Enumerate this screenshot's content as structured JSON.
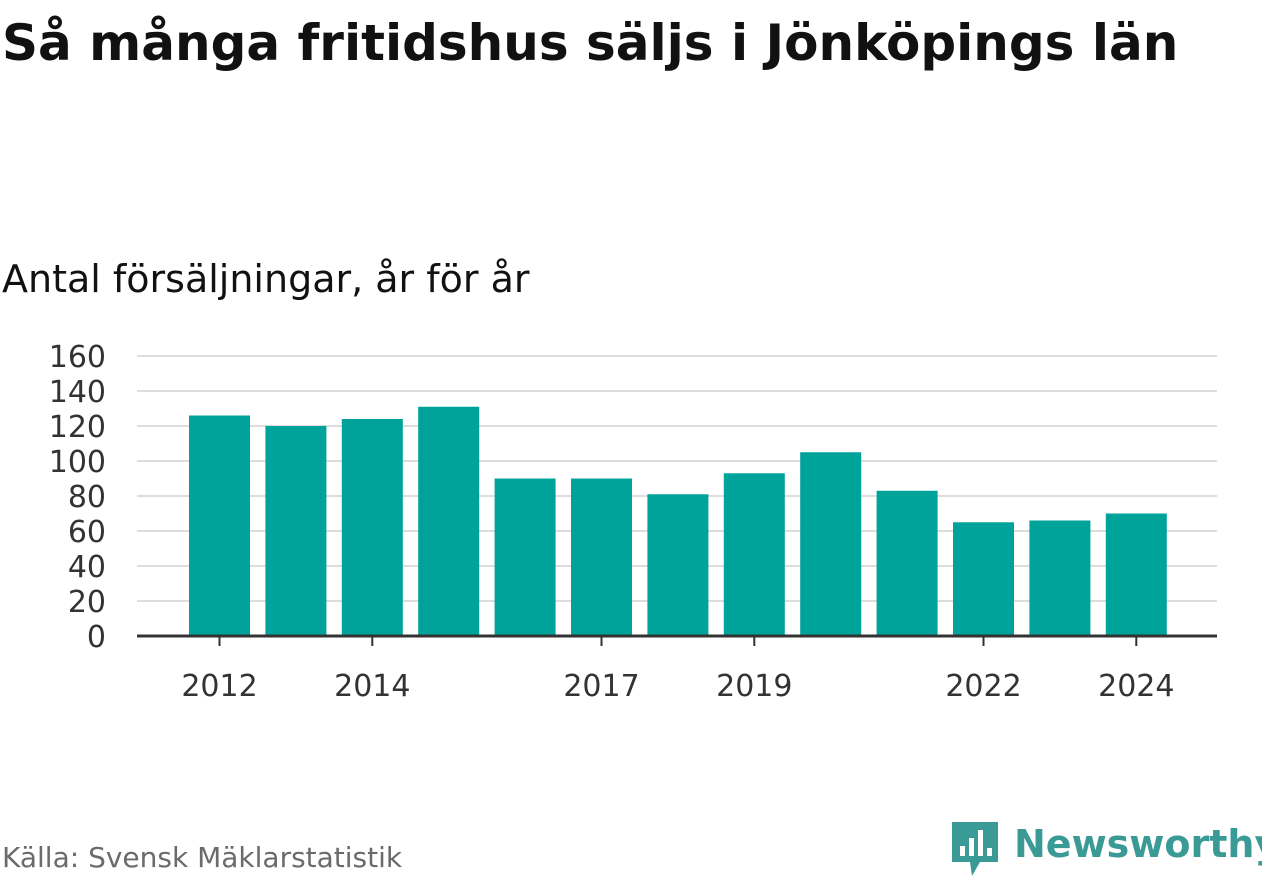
{
  "chart_data": {
    "type": "bar",
    "title": "Så många fritidshus säljs i Jönköpings län",
    "subtitle": "Antal försäljningar, år för år",
    "categories": [
      "2012",
      "2013",
      "2014",
      "2015",
      "2016",
      "2017",
      "2018",
      "2019",
      "2020",
      "2021",
      "2022",
      "2023",
      "2024"
    ],
    "values": [
      126,
      120,
      124,
      131,
      90,
      90,
      81,
      93,
      105,
      83,
      65,
      66,
      70
    ],
    "x_tick_labels": [
      "2012",
      "2014",
      "2017",
      "2019",
      "2022",
      "2024"
    ],
    "y_ticks": [
      0,
      20,
      40,
      60,
      80,
      100,
      120,
      140,
      160
    ],
    "ylim": [
      0,
      160
    ],
    "xlabel": "",
    "ylabel": "",
    "grid": true,
    "bar_color": "#00a39a"
  },
  "source": "Källa: Svensk Mäklarstatistik",
  "logo": {
    "text": "Newsworthy",
    "color": "#3a9a96",
    "icon": "newsworthy-bar-icon"
  }
}
